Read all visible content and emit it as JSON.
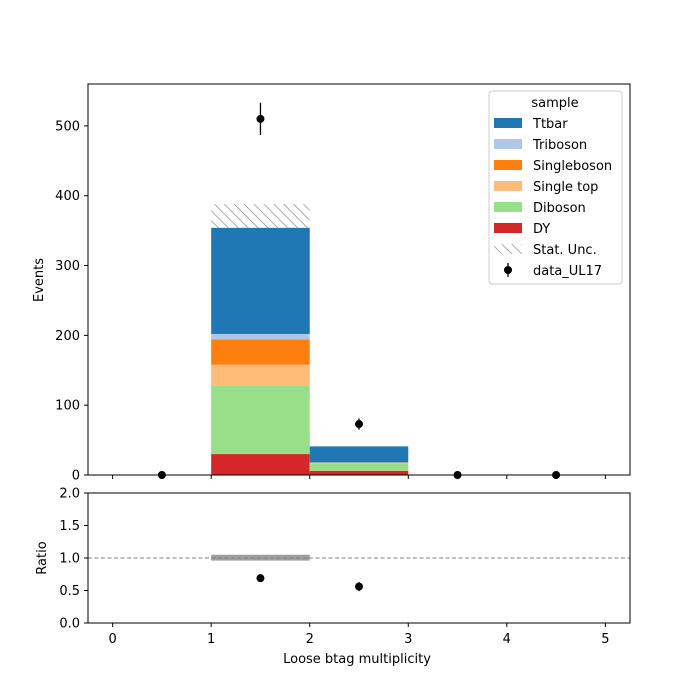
{
  "chart_data": [
    {
      "type": "bar",
      "stacked": true,
      "xlabel": "",
      "ylabel": "Events",
      "xlim": [
        -0.25,
        5.25
      ],
      "ylim": [
        0,
        560
      ],
      "yticks": [
        0,
        100,
        200,
        300,
        400,
        500
      ],
      "xticks": [
        0,
        1,
        2,
        3,
        4,
        5
      ],
      "bin_edges": [
        0,
        1,
        2,
        3,
        4,
        5
      ],
      "series": [
        {
          "name": "DY",
          "color": "#d62728",
          "values": [
            0,
            30,
            6,
            0,
            0
          ]
        },
        {
          "name": "Diboson",
          "color": "#98df8a",
          "values": [
            0,
            98,
            10,
            0,
            0
          ]
        },
        {
          "name": "Single top",
          "color": "#ffbb78",
          "values": [
            0,
            30,
            2,
            0,
            0
          ]
        },
        {
          "name": "Singleboson",
          "color": "#ff7f0e",
          "values": [
            0,
            36,
            0,
            0,
            0
          ]
        },
        {
          "name": "Triboson",
          "color": "#aec7e8",
          "values": [
            0,
            8,
            0,
            0,
            0
          ]
        },
        {
          "name": "Ttbar",
          "color": "#1f77b4",
          "values": [
            0,
            152,
            23,
            0,
            0
          ]
        }
      ],
      "stat_unc": {
        "name": "Stat. Unc.",
        "low": [
          0,
          354,
          41,
          0,
          0
        ],
        "high": [
          0,
          388,
          41,
          0,
          0
        ]
      },
      "data": {
        "name": "data_UL17",
        "x": [
          0.5,
          1.5,
          2.5,
          3.5,
          4.5
        ],
        "y": [
          0,
          510,
          73,
          0,
          0
        ],
        "err": [
          0,
          23,
          8,
          0,
          0
        ]
      },
      "legend": {
        "title": "sample",
        "placement": "top-right",
        "entries": [
          "Ttbar",
          "Triboson",
          "Singleboson",
          "Single top",
          "Diboson",
          "DY",
          "Stat. Unc.",
          "data_UL17"
        ]
      }
    },
    {
      "type": "scatter",
      "xlabel": "Loose btag multiplicity",
      "ylabel": "Ratio",
      "xlim": [
        -0.25,
        5.25
      ],
      "ylim": [
        0,
        2
      ],
      "yticks": [
        "0.0",
        "0.5",
        "1.0",
        "1.5",
        "2.0"
      ],
      "xticks": [
        "0",
        "1",
        "2",
        "3",
        "4",
        "5"
      ],
      "reference_line": 1.0,
      "unc_band": {
        "x0": 1,
        "x1": 2,
        "low": 0.96,
        "high": 1.05
      },
      "points": {
        "x": [
          1.5,
          2.5
        ],
        "y": [
          0.69,
          0.56
        ],
        "err": [
          0.04,
          0.07
        ]
      }
    }
  ]
}
